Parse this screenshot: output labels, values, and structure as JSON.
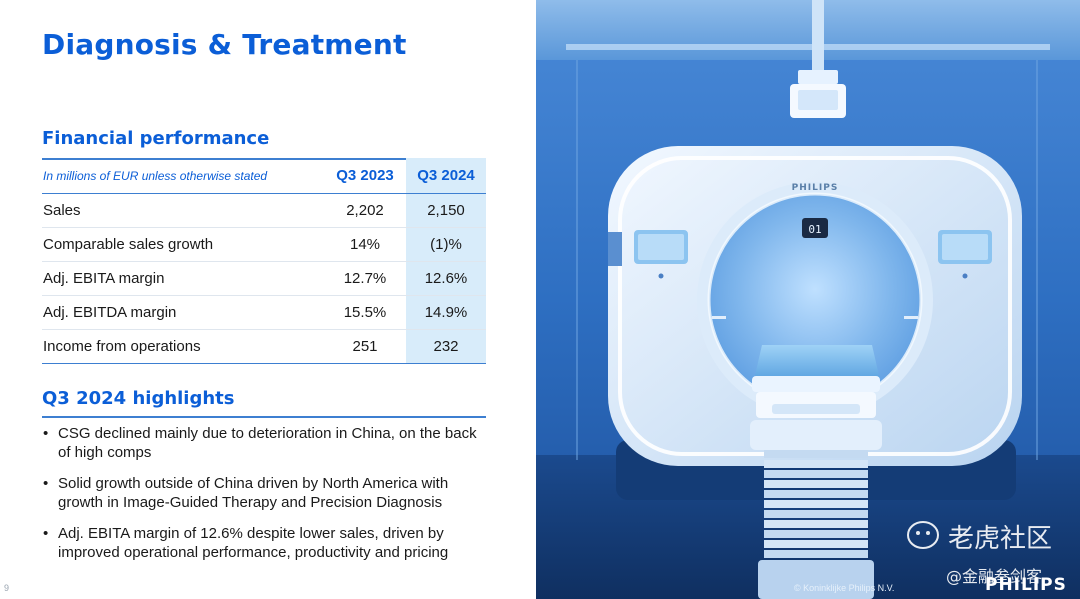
{
  "slide": {
    "title": "Diagnosis & Treatment",
    "page_number": "9"
  },
  "financial": {
    "heading": "Financial performance",
    "units_note": "In millions of EUR unless otherwise stated",
    "columns": [
      "Q3 2023",
      "Q3 2024"
    ],
    "rows": [
      {
        "label": "Sales",
        "q3_2023": "2,202",
        "q3_2024": "2,150"
      },
      {
        "label": "Comparable sales growth",
        "q3_2023": "14%",
        "q3_2024": "(1)%"
      },
      {
        "label": "Adj. EBITA margin",
        "q3_2023": "12.7%",
        "q3_2024": "12.6%"
      },
      {
        "label": "Adj. EBITDA margin",
        "q3_2023": "15.5%",
        "q3_2024": "14.9%"
      },
      {
        "label": "Income from operations",
        "q3_2023": "251",
        "q3_2024": "232"
      }
    ]
  },
  "highlights": {
    "heading": "Q3 2024 highlights",
    "items": [
      "CSG declined mainly due to deterioration in China, on the back of high comps",
      "Solid growth outside of China driven by North America with growth in Image-Guided Therapy and Precision Diagnosis",
      "Adj. EBITA margin of 12.6% despite lower sales, driven by improved operational performance, productivity and pricing"
    ]
  },
  "photo": {
    "scanner_brand": "PHILIPS",
    "scanner_display": "01",
    "copyright": "© Koninklijke Philips N.V.",
    "brand": "PHILIPS",
    "watermark_primary": "老虎社区",
    "watermark_secondary": "@金融叁剑客"
  },
  "colors": {
    "accent": "#0b5ed7",
    "rule": "#3d7fd1",
    "highlight_column": "#d8ecfa",
    "room_blue": "#2f6fc4"
  }
}
